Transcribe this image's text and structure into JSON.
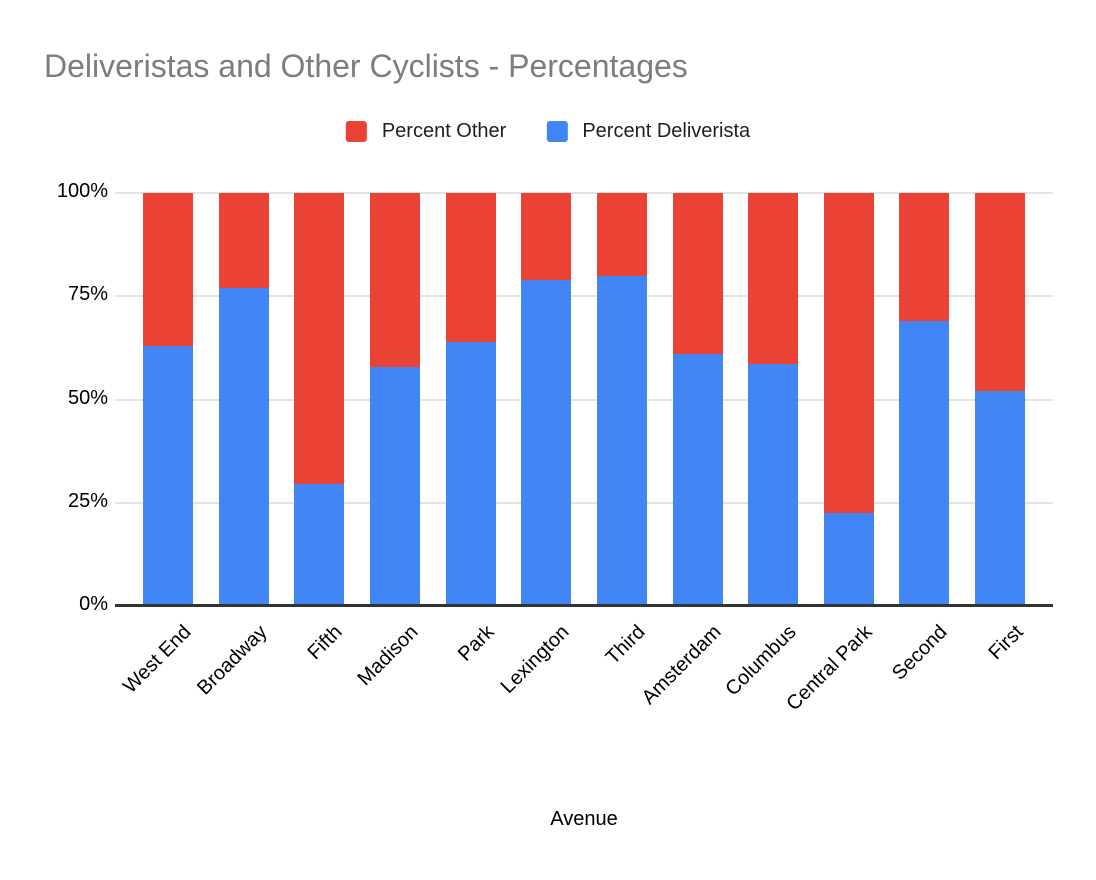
{
  "chart_data": {
    "type": "bar",
    "variant": "stacked-100-percent",
    "title": "Deliveristas and Other Cyclists - Percentages",
    "xlabel": "Avenue",
    "ylabel": "",
    "categories": [
      "West End",
      "Broadway",
      "Fifth",
      "Madison",
      "Park",
      "Lexington",
      "Third",
      "Amsterdam",
      "Columbus",
      "Central Park",
      "Second",
      "First"
    ],
    "series": [
      {
        "name": "Percent Deliverista",
        "color": "#4285f4",
        "values": [
          63,
          77,
          29.5,
          58,
          64,
          79,
          80,
          61,
          58.5,
          22.5,
          69,
          52
        ]
      },
      {
        "name": "Percent Other",
        "color": "#ea4335",
        "values": [
          37,
          23,
          70.5,
          42,
          36,
          21,
          20,
          39,
          41.5,
          77.5,
          31,
          48
        ]
      }
    ],
    "stack_order_bottom_to_top": [
      "Percent Deliverista",
      "Percent Other"
    ],
    "ylim": [
      0,
      100
    ],
    "y_ticks": [
      {
        "value": 0,
        "label": "0%"
      },
      {
        "value": 25,
        "label": "25%"
      },
      {
        "value": 50,
        "label": "50%"
      },
      {
        "value": 75,
        "label": "75%"
      },
      {
        "value": 100,
        "label": "100%"
      }
    ],
    "grid": true,
    "legend_position": "top"
  },
  "legend": {
    "items": [
      {
        "label": "Percent Other",
        "color": "#ea4335"
      },
      {
        "label": "Percent Deliverista",
        "color": "#4285f4"
      }
    ]
  },
  "colors": {
    "background": "#ffffff",
    "title_text": "#7d7d7d",
    "axis_text": "#000000",
    "gridline": "#e3e3e3",
    "axis_line": "#333333",
    "series_other": "#ea4335",
    "series_deliverista": "#4285f4"
  }
}
